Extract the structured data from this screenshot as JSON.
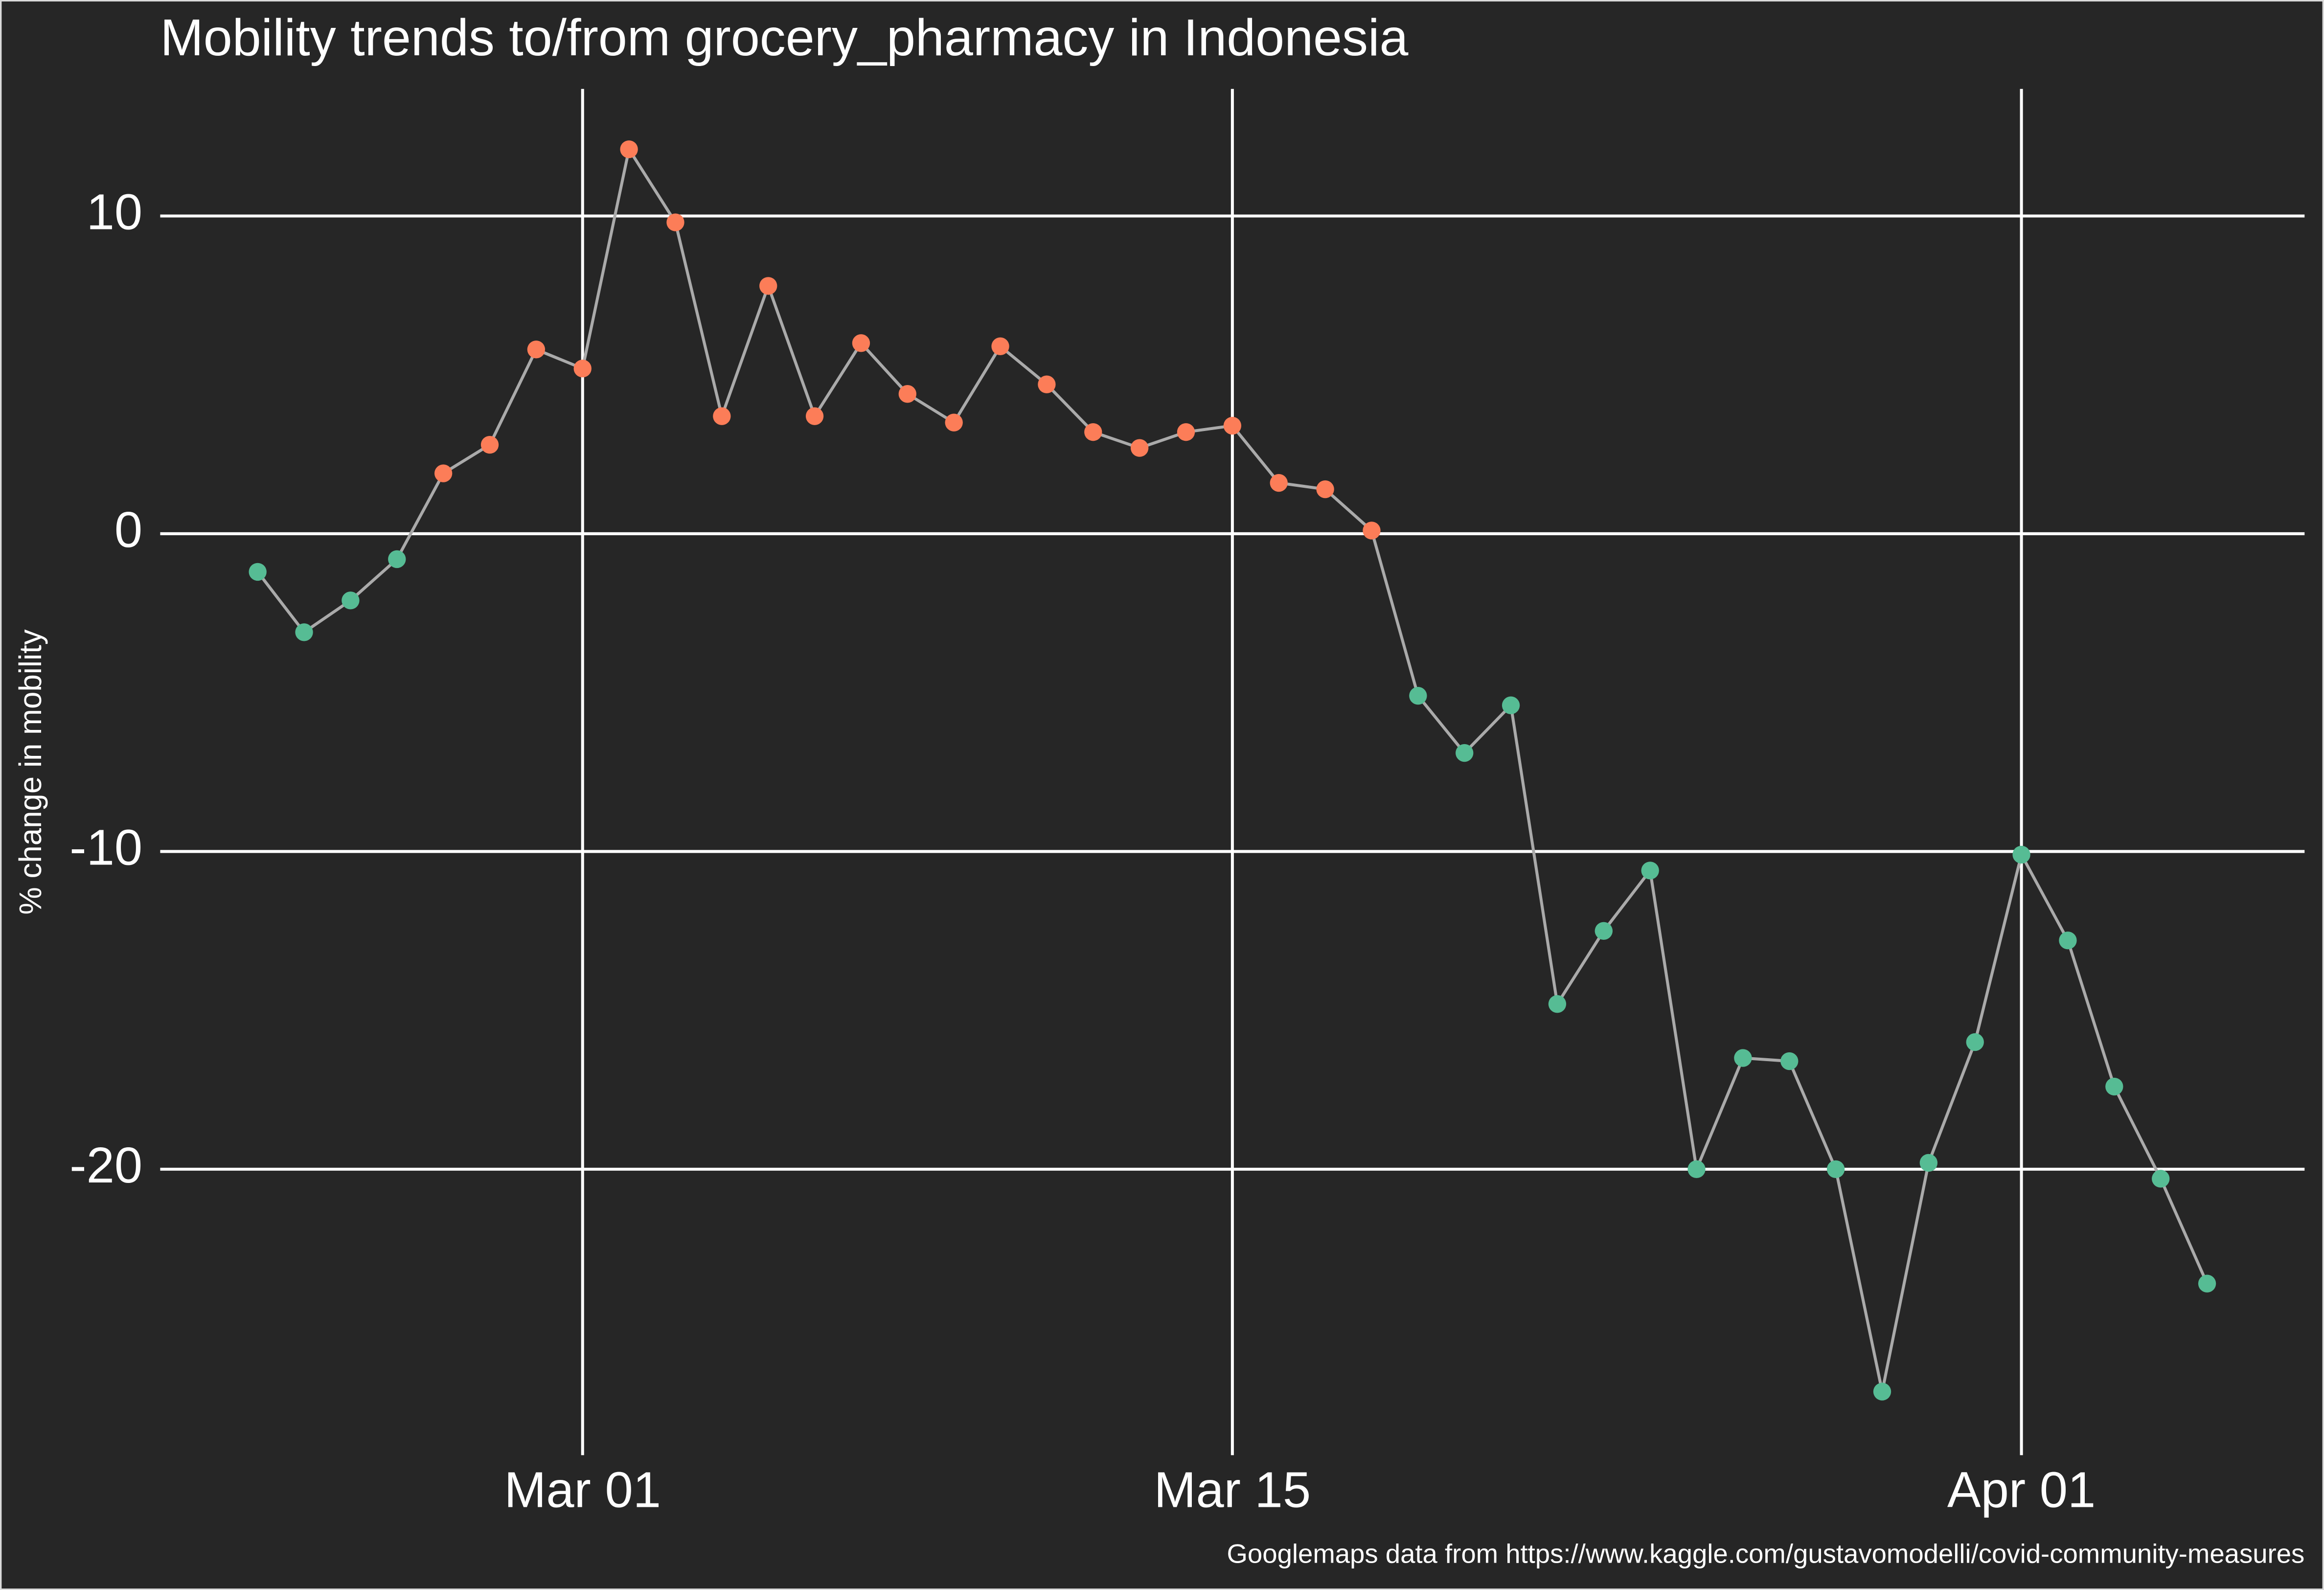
{
  "chart_data": {
    "type": "line",
    "title": "Mobility trends to/from grocery_pharmacy in Indonesia",
    "y_label": "% change in mobility",
    "caption": "Googlemaps data from https://www.kaggle.com/gustavomodelli/covid-community-measures",
    "x": [
      "Feb 23",
      "Feb 24",
      "Feb 25",
      "Feb 26",
      "Feb 27",
      "Feb 28",
      "Feb 29",
      "Mar 01",
      "Mar 02",
      "Mar 03",
      "Mar 04",
      "Mar 05",
      "Mar 06",
      "Mar 07",
      "Mar 08",
      "Mar 09",
      "Mar 10",
      "Mar 11",
      "Mar 12",
      "Mar 13",
      "Mar 14",
      "Mar 15",
      "Mar 16",
      "Mar 17",
      "Mar 18",
      "Mar 19",
      "Mar 20",
      "Mar 21",
      "Mar 22",
      "Mar 23",
      "Mar 24",
      "Mar 25",
      "Mar 26",
      "Mar 27",
      "Mar 28",
      "Mar 29",
      "Mar 30",
      "Mar 31",
      "Apr 01",
      "Apr 02",
      "Apr 03",
      "Apr 04",
      "Apr 05"
    ],
    "values": [
      -1.2,
      -3.1,
      -2.1,
      -0.8,
      1.9,
      2.8,
      5.8,
      5.2,
      12.1,
      9.8,
      3.7,
      7.8,
      3.7,
      6.0,
      4.4,
      3.5,
      5.9,
      4.7,
      3.2,
      2.7,
      3.2,
      3.4,
      1.6,
      1.4,
      0.1,
      -5.1,
      -6.9,
      -5.4,
      -14.8,
      -12.5,
      -10.6,
      -20.0,
      -16.5,
      -16.6,
      -20.0,
      -27.0,
      -19.8,
      -16.0,
      -10.1,
      -12.8,
      -17.4,
      -20.3,
      -23.6
    ],
    "line_color": "#aaaaaa",
    "positive_color": "#fc7d58",
    "negative_color": "#56bc94",
    "xticks": [
      "Mar 01",
      "Mar 15",
      "Apr 01"
    ],
    "ylim": [
      -29,
      14
    ],
    "yticks": [
      -20,
      -10,
      0,
      10
    ],
    "grid": true
  }
}
